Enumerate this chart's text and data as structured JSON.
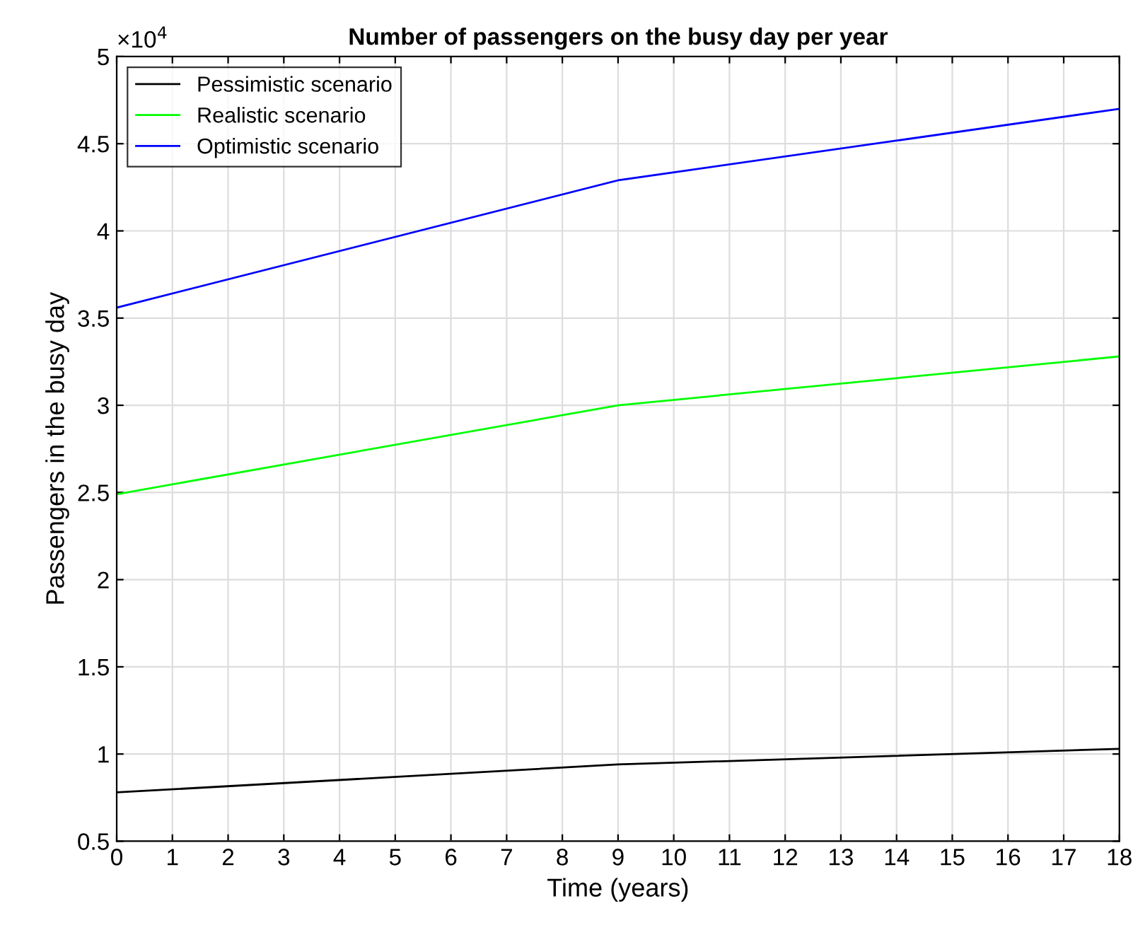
{
  "chart_data": {
    "type": "line",
    "title": "Number of passengers on the busy day per year",
    "xlabel": "Time (years)",
    "ylabel": "Passengers in the busy day",
    "annotations": [
      "×10$^{4}$"
    ],
    "series": [
      {
        "name": "Pessimistic scenario",
        "color": "#000000",
        "x": [
          0,
          9,
          18
        ],
        "values": [
          0.78,
          0.94,
          1.03
        ]
      },
      {
        "name": "Realistic scenario",
        "color": "#00ff00",
        "x": [
          0,
          9,
          18
        ],
        "values": [
          2.49,
          3.0,
          3.28
        ]
      },
      {
        "name": "Optimistic scenario",
        "color": "#0000ff",
        "x": [
          0,
          9,
          18
        ],
        "values": [
          3.56,
          4.29,
          4.7
        ]
      }
    ],
    "xlim": [
      0,
      18
    ],
    "xticks": [
      0,
      1,
      2,
      3,
      4,
      5,
      6,
      7,
      8,
      9,
      10,
      11,
      12,
      13,
      14,
      15,
      16,
      17,
      18
    ],
    "ylim": [
      0.5,
      5
    ],
    "yticks": [
      0.5,
      1,
      1.5,
      2,
      2.5,
      3,
      3.5,
      4,
      4.5,
      5
    ],
    "grid": true,
    "legend": "top left",
    "marker": "none",
    "line_style": "solid"
  }
}
